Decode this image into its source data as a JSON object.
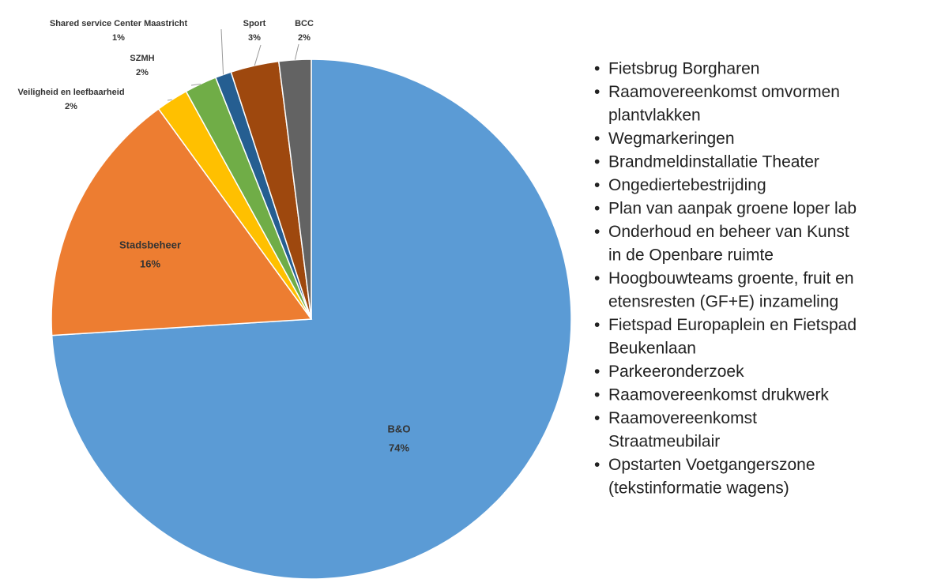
{
  "chart_data": {
    "type": "pie",
    "categories": [
      "B&O",
      "Stadsbeheer",
      "Veiligheid en leefbaarheid",
      "SZMH",
      "Shared service Center Maastricht",
      "Sport",
      "BCC"
    ],
    "values": [
      74,
      16,
      2,
      2,
      1,
      3,
      2
    ],
    "value_labels": [
      "74%",
      "16%",
      "2%",
      "2%",
      "1%",
      "3%",
      "2%"
    ],
    "colors": [
      "#5b9bd5",
      "#ed7d31",
      "#ffc000",
      "#70ad47",
      "#255e91",
      "#9e480e",
      "#636363"
    ]
  },
  "bullets": [
    [
      "Fietsbrug Borgharen"
    ],
    [
      "Raamovereenkomst omvormen",
      "plantvlakken"
    ],
    [
      "Wegmarkeringen"
    ],
    [
      "Brandmeldinstallatie Theater"
    ],
    [
      "Ongediertebestrijding"
    ],
    [
      "Plan van aanpak groene loper lab"
    ],
    [
      "Onderhoud en beheer van Kunst",
      "in de Openbare ruimte"
    ],
    [
      "Hoogbouwteams groente, fruit en",
      "etensresten (GF+E) inzameling"
    ],
    [
      "Fietspad Europaplein en Fietspad",
      "Beukenlaan"
    ],
    [
      "Parkeeronderzoek"
    ],
    [
      "Raamovereenkomst drukwerk"
    ],
    [
      "Raamovereenkomst",
      "Straatmeubilair"
    ],
    [
      "Opstarten Voetgangerszone",
      "(tekstinformatie wagens)"
    ]
  ]
}
